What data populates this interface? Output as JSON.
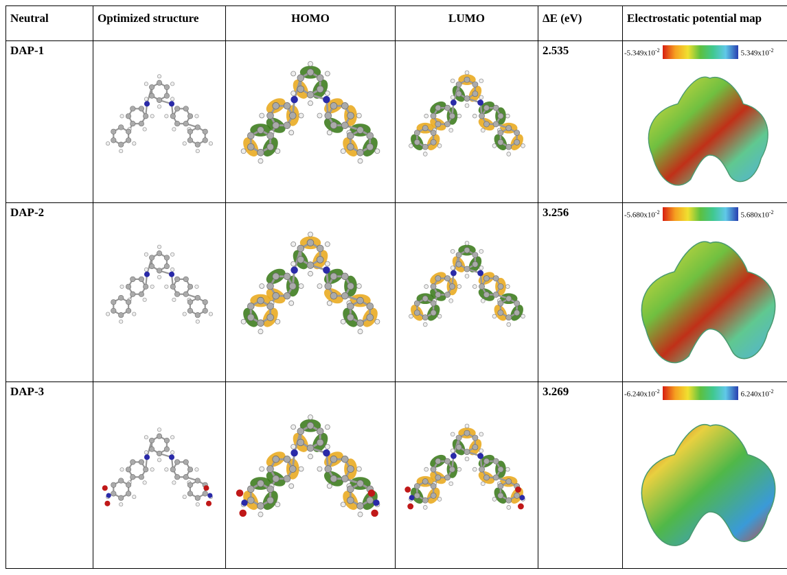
{
  "header": {
    "columns": [
      "Neutral",
      "Optimized structure",
      "HOMO",
      "LUMO",
      "ΔE (eV)",
      "Electrostatic potential map"
    ]
  },
  "rows": [
    {
      "name": "DAP-1",
      "delta_e": 2.535,
      "esp_min": {
        "base": "-5.349x10",
        "exp": "-2"
      },
      "esp_max": {
        "base": "5.349x10",
        "exp": "-2"
      }
    },
    {
      "name": "DAP-2",
      "delta_e": 3.256,
      "esp_min": {
        "base": "-5.680x10",
        "exp": "-2"
      },
      "esp_max": {
        "base": "5.680x10",
        "exp": "-2"
      }
    },
    {
      "name": "DAP-3",
      "delta_e": 3.269,
      "esp_min": {
        "base": "-6.240x10",
        "exp": "-2"
      },
      "esp_max": {
        "base": "6.240x10",
        "exp": "-2"
      }
    }
  ]
}
